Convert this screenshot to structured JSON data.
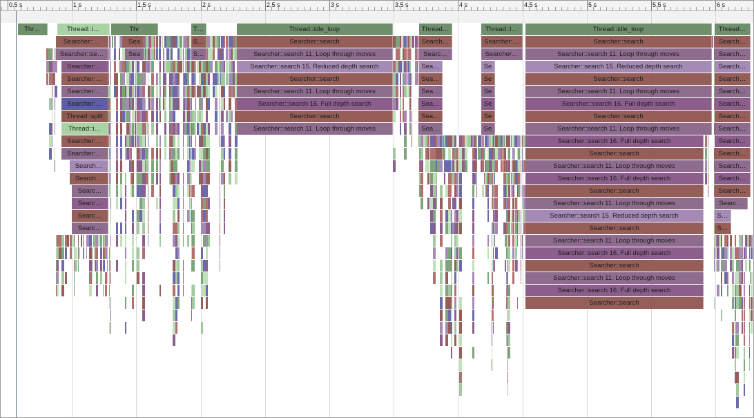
{
  "ruler": {
    "ticks": [
      "0.5 s",
      "1 s",
      "1.5 s",
      "2 s",
      "2.5 s",
      "3 s",
      "3.5 s",
      "4 s",
      "4.5 s",
      "5 s",
      "5.5 s",
      "6 s"
    ]
  },
  "colors": {
    "thread": "#6f8f6d",
    "thread_light": "#a9d3a5",
    "search": "#955e58",
    "loop": "#8e6c8e",
    "reduced": "#a58ab5",
    "full": "#8c5e8c",
    "split": "#8e5a50",
    "highlight": "#5d5ea3",
    "noise": [
      "#7ea47c",
      "#a2c8a0",
      "#955e58",
      "#8c5e8c",
      "#a58ab5",
      "#6c6aa8",
      "#bfe0b8",
      "#b07070"
    ]
  },
  "blocks": [
    {
      "label": "Thr…",
      "row": 0,
      "color": "thread"
    },
    {
      "label": "Thread::i…",
      "row": 0,
      "color": "thread_light"
    },
    {
      "label": "Searcher::…",
      "row": 1,
      "color": "search"
    },
    {
      "label": "Searcher::se…",
      "row": 2,
      "color": "loop"
    },
    {
      "label": "Searcher:…",
      "row": 3,
      "color": "full"
    },
    {
      "label": "Searcher:…",
      "row": 4,
      "color": "search"
    },
    {
      "label": "Searcher:…",
      "row": 5,
      "color": "loop"
    },
    {
      "label": "Searcher:…",
      "row": 6,
      "color": "highlight"
    },
    {
      "label": "Thread::split",
      "row": 7,
      "color": "split"
    },
    {
      "label": "Thread::i…",
      "row": 8,
      "color": "thread_light"
    },
    {
      "label": "Searcher:…",
      "row": 9,
      "color": "search"
    },
    {
      "label": "Searcher:…",
      "row": 10,
      "color": "loop"
    },
    {
      "label": "Search…",
      "row": 11,
      "color": "reduced"
    },
    {
      "label": "Search…",
      "row": 12,
      "color": "search"
    },
    {
      "label": "Searc…",
      "row": 13,
      "color": "loop"
    },
    {
      "label": "Searc…",
      "row": 14,
      "color": "full"
    },
    {
      "label": "Searc…",
      "row": 15,
      "color": "search"
    },
    {
      "label": "Searc…",
      "row": 16,
      "color": "loop"
    },
    {
      "label": "Thr",
      "row": 0,
      "color": "thread"
    },
    {
      "label": "Sea",
      "row": 1,
      "color": "search"
    },
    {
      "label": "Sea",
      "row": 2,
      "color": "loop"
    },
    {
      "label": "T…",
      "row": 0,
      "color": "thread"
    },
    {
      "label": "S…",
      "row": 1,
      "color": "search"
    },
    {
      "label": "S…",
      "row": 2,
      "color": "loop"
    },
    {
      "label": "Thread::idle_loop",
      "row": 0,
      "color": "thread"
    },
    {
      "label": "Searcher::search",
      "row": 1,
      "color": "search"
    },
    {
      "label": "Searcher::search 11. Loop through moves",
      "row": 2,
      "color": "loop"
    },
    {
      "label": "Searcher::search 15. Reduced depth search",
      "row": 3,
      "color": "reduced"
    },
    {
      "label": "Searcher::search",
      "row": 4,
      "color": "search"
    },
    {
      "label": "Searcher::search 11. Loop through moves",
      "row": 5,
      "color": "loop"
    },
    {
      "label": "Searcher::search 16. Full depth search",
      "row": 6,
      "color": "full"
    },
    {
      "label": "Searcher::search",
      "row": 7,
      "color": "search"
    },
    {
      "label": "Searcher::search 11. Loop through moves",
      "row": 8,
      "color": "loop"
    },
    {
      "label": "Thread…",
      "row": 0,
      "color": "thread"
    },
    {
      "label": "Search…",
      "row": 1,
      "color": "search"
    },
    {
      "label": "Searc…",
      "row": 2,
      "color": "loop"
    },
    {
      "label": "Sea…",
      "row": 3,
      "color": "reduced"
    },
    {
      "label": "Sea…",
      "row": 4,
      "color": "search"
    },
    {
      "label": "Sea…",
      "row": 5,
      "color": "loop"
    },
    {
      "label": "Sea…",
      "row": 6,
      "color": "full"
    },
    {
      "label": "Sea…",
      "row": 7,
      "color": "search"
    },
    {
      "label": "Sea…",
      "row": 8,
      "color": "loop"
    },
    {
      "label": "Thread::i…",
      "row": 0,
      "color": "thread"
    },
    {
      "label": "Searcher:…",
      "row": 1,
      "color": "search"
    },
    {
      "label": "Searcher…",
      "row": 2,
      "color": "loop"
    },
    {
      "label": "Se",
      "row": 3,
      "color": "reduced"
    },
    {
      "label": "Se",
      "row": 4,
      "color": "search"
    },
    {
      "label": "Se",
      "row": 5,
      "color": "loop"
    },
    {
      "label": "Se",
      "row": 6,
      "color": "full"
    },
    {
      "label": "Se",
      "row": 7,
      "color": "search"
    },
    {
      "label": "Se",
      "row": 8,
      "color": "loop"
    },
    {
      "label": "Thread::idle_loop",
      "row": 0,
      "color": "thread"
    },
    {
      "label": "Searcher::search",
      "row": 1,
      "color": "search"
    },
    {
      "label": "Searcher::search 11. Loop through moves",
      "row": 2,
      "color": "loop"
    },
    {
      "label": "Searcher::search 15. Reduced depth search",
      "row": 3,
      "color": "reduced"
    },
    {
      "label": "Searcher::search",
      "row": 4,
      "color": "search"
    },
    {
      "label": "Searcher::search 11. Loop through moves",
      "row": 5,
      "color": "loop"
    },
    {
      "label": "Searcher::search 16. Full depth search",
      "row": 6,
      "color": "full"
    },
    {
      "label": "Searcher::search",
      "row": 7,
      "color": "search"
    },
    {
      "label": "Searcher::search 11. Loop through moves",
      "row": 8,
      "color": "loop"
    },
    {
      "label": "Searcher::search 16. Full depth search",
      "row": 9,
      "color": "full"
    },
    {
      "label": "Searcher::search",
      "row": 10,
      "color": "search"
    },
    {
      "label": "Searcher::search 11. Loop through moves",
      "row": 11,
      "color": "loop"
    },
    {
      "label": "Searcher::search 16. Full depth search",
      "row": 12,
      "color": "full"
    },
    {
      "label": "Searcher::search",
      "row": 13,
      "color": "search"
    },
    {
      "label": "Searcher::search 11. Loop through moves",
      "row": 14,
      "color": "loop"
    },
    {
      "label": "Searcher::search 15. Reduced depth search",
      "row": 15,
      "color": "reduced"
    },
    {
      "label": "Searcher::search",
      "row": 16,
      "color": "search"
    },
    {
      "label": "Searcher::search 11. Loop through moves",
      "row": 17,
      "color": "loop"
    },
    {
      "label": "Searcher::search 16. Full depth search",
      "row": 18,
      "color": "full"
    },
    {
      "label": "Searcher::search",
      "row": 19,
      "color": "search"
    },
    {
      "label": "Searcher::search 11. Loop through moves",
      "row": 20,
      "color": "loop"
    },
    {
      "label": "Searcher::search 16. Full depth search",
      "row": 21,
      "color": "full"
    },
    {
      "label": "Searcher::search",
      "row": 22,
      "color": "search"
    },
    {
      "label": "Thread…",
      "row": 0,
      "color": "thread"
    },
    {
      "label": "Search…",
      "row": 1,
      "color": "search"
    },
    {
      "label": "Search…",
      "row": 2,
      "color": "loop"
    },
    {
      "label": "Search…",
      "row": 3,
      "color": "reduced"
    },
    {
      "label": "Search…",
      "row": 4,
      "color": "search"
    },
    {
      "label": "Search…",
      "row": 5,
      "color": "loop"
    },
    {
      "label": "Search…",
      "row": 6,
      "color": "full"
    },
    {
      "label": "Search…",
      "row": 7,
      "color": "search"
    },
    {
      "label": "Search…",
      "row": 8,
      "color": "loop"
    },
    {
      "label": "Search…",
      "row": 9,
      "color": "full"
    },
    {
      "label": "Search…",
      "row": 10,
      "color": "search"
    },
    {
      "label": "Search…",
      "row": 11,
      "color": "loop"
    },
    {
      "label": "Search…",
      "row": 12,
      "color": "full"
    },
    {
      "label": "Search…",
      "row": 13,
      "color": "search"
    },
    {
      "label": "Searc…",
      "row": 14,
      "color": "loop"
    },
    {
      "label": "S…",
      "row": 15,
      "color": "reduced"
    },
    {
      "label": "S…",
      "row": 16,
      "color": "search"
    }
  ]
}
